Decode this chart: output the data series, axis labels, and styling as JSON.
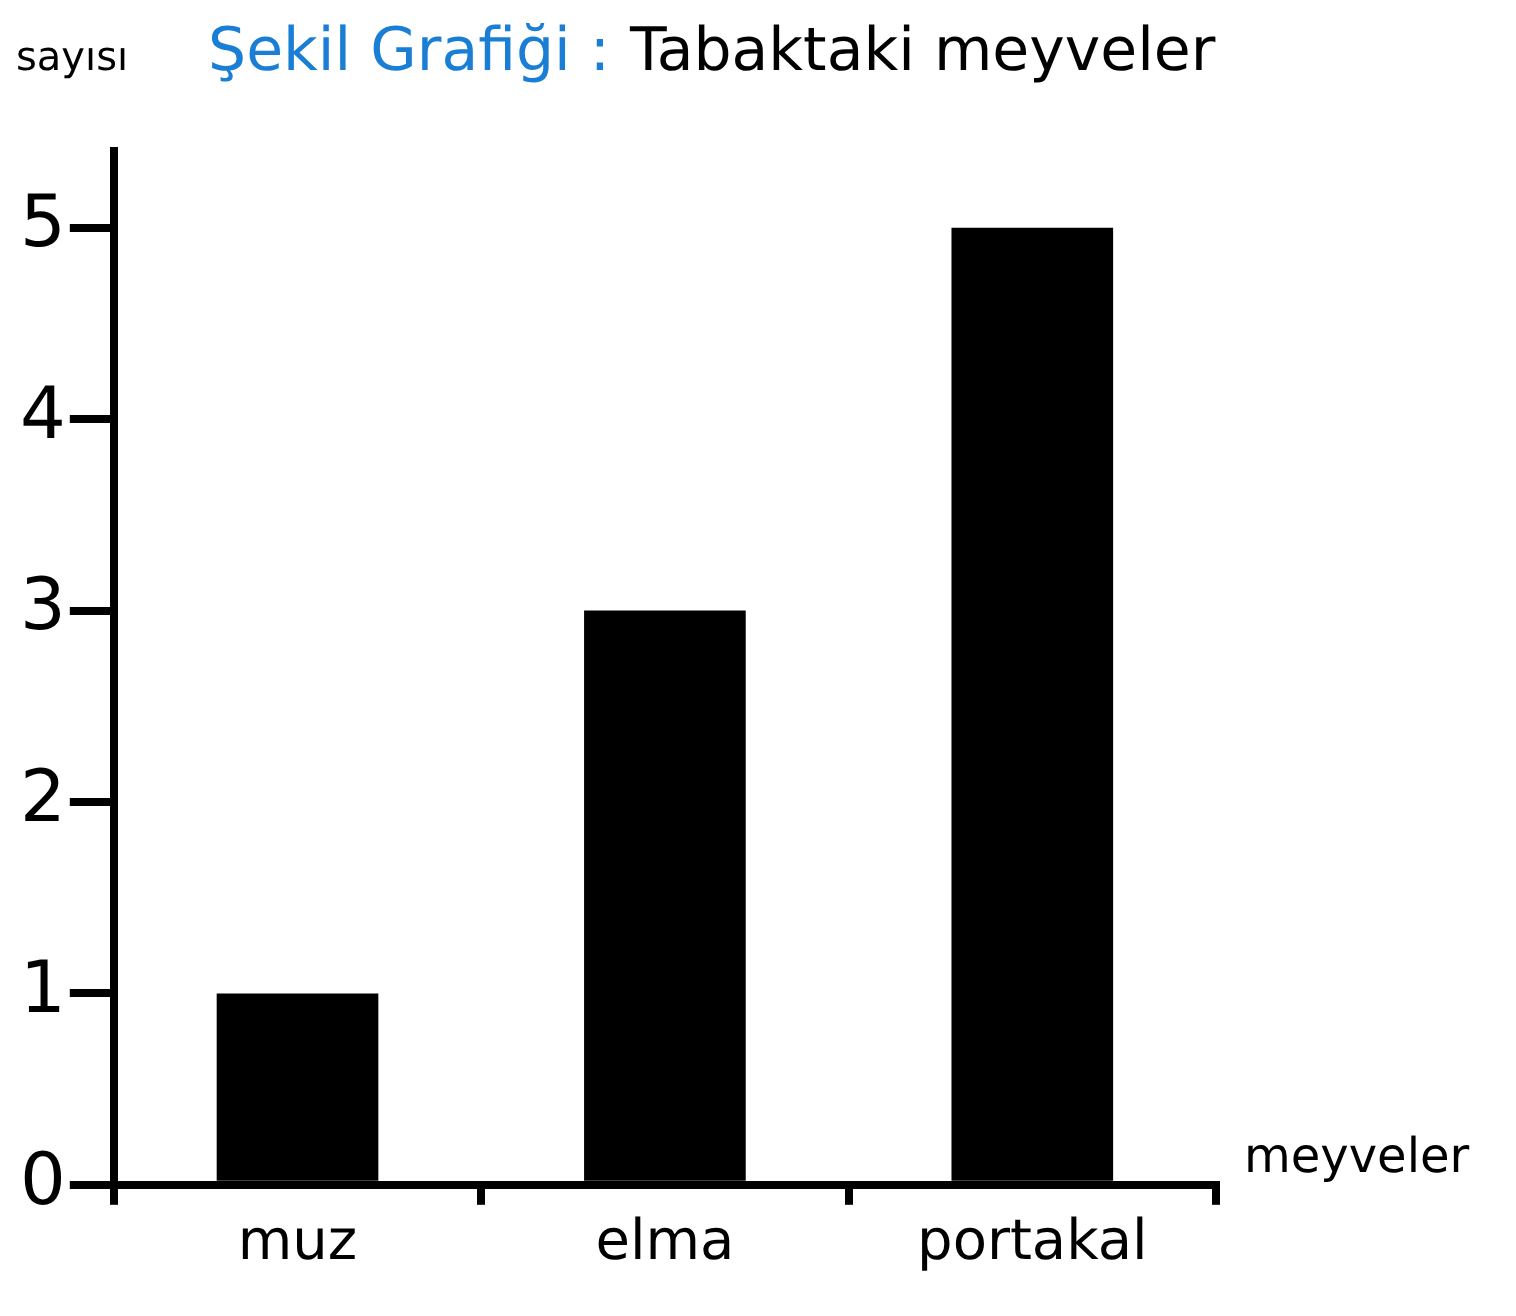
{
  "chart_data": {
    "type": "bar",
    "title": "Şekil Grafiği :",
    "subtitle": "Tabaktaki meyveler",
    "ylabel": "sayısı",
    "xlabel": "meyveler",
    "categories": [
      "muz",
      "elma",
      "portakal"
    ],
    "values": [
      1,
      3,
      5
    ],
    "color": "#000000",
    "ylim": [
      0,
      5.4
    ],
    "yticks": [
      0,
      1,
      2,
      3,
      4,
      5
    ],
    "grid": false
  }
}
